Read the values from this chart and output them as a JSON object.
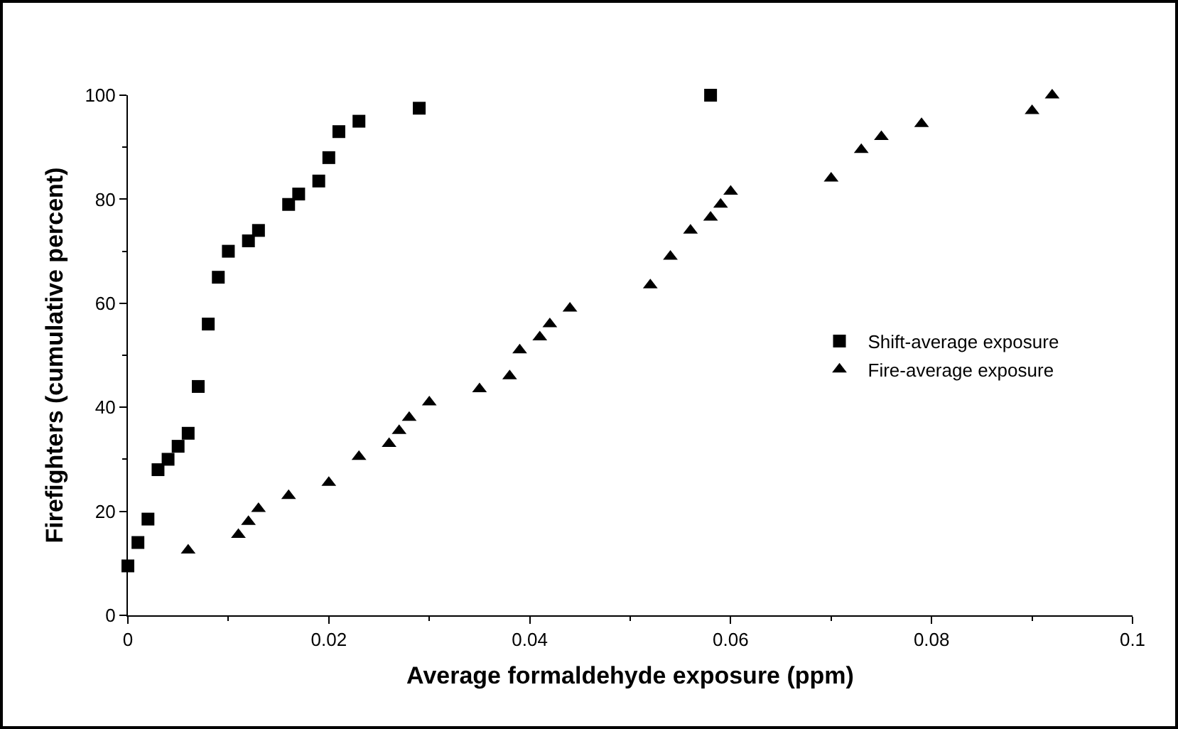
{
  "chart_data": {
    "type": "scatter",
    "xlabel": "Average formaldehyde exposure (ppm)",
    "ylabel": "Firefighters (cumulative percent)",
    "series": [
      {
        "name": "Shift-average exposure",
        "color": "#000000",
        "marker": "square",
        "x": [
          0,
          0.001,
          0.002,
          0.003,
          0.004,
          0.005,
          0.006,
          0.007,
          0.008,
          0.009,
          0.01,
          0.012,
          0.013,
          0.016,
          0.017,
          0.019,
          0.02,
          0.021,
          0.023,
          0.029,
          0.058
        ],
        "values": [
          9.5,
          14,
          18.5,
          28,
          30,
          32.5,
          35,
          44,
          56,
          65,
          70,
          72,
          74,
          79,
          81,
          83.5,
          88,
          93,
          95,
          97.5,
          100
        ]
      },
      {
        "name": "Fire-average exposure",
        "color": "#000000",
        "marker": "triangle",
        "x": [
          0.006,
          0.011,
          0.012,
          0.013,
          0.016,
          0.02,
          0.023,
          0.026,
          0.027,
          0.028,
          0.03,
          0.035,
          0.038,
          0.039,
          0.041,
          0.042,
          0.044,
          0.052,
          0.054,
          0.056,
          0.058,
          0.059,
          0.06,
          0.07,
          0.073,
          0.075,
          0.079,
          0.09,
          0.092
        ],
        "values": [
          12.5,
          15.5,
          18,
          20.5,
          23,
          25.5,
          30.5,
          33,
          35.5,
          38,
          41,
          43.5,
          46,
          51,
          53.5,
          56,
          59,
          63.5,
          69,
          74,
          76.5,
          79,
          81.5,
          84,
          89.5,
          92,
          94.5,
          97,
          100
        ]
      }
    ],
    "xlim": [
      0,
      0.1
    ],
    "xticks": [
      0,
      0.02,
      0.04,
      0.06,
      0.08,
      0.1
    ],
    "ylim": [
      0,
      100
    ],
    "yticks": [
      0,
      20,
      40,
      60,
      80,
      100
    ],
    "grid": false,
    "legend": "right"
  }
}
